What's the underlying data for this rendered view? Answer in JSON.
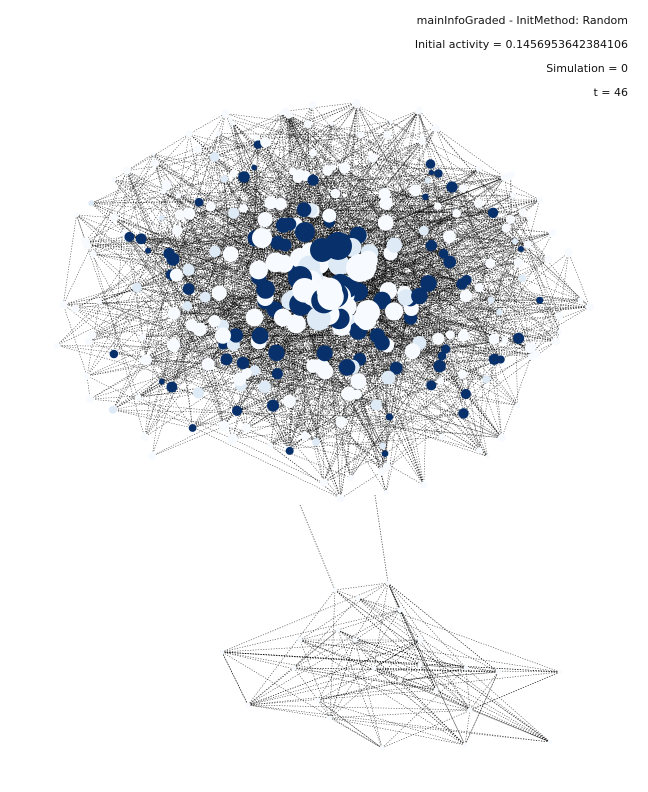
{
  "info": {
    "title": "mainInfoGraded - InitMethod: Random",
    "initial_activity": "Initial activity = 0.1456953642384106",
    "simulation": "Simulation = 0",
    "time": "t = 46"
  },
  "colors": {
    "background": "#ffffff",
    "edge": "#000000",
    "node_inactive": "#f7fbff",
    "node_light": "#deebf7",
    "node_active": "#08306b"
  },
  "graph": {
    "layout": "spring",
    "edge_style": "dotted",
    "node_colormap": "Blues",
    "node_size_by": "degree",
    "components": 2
  }
}
